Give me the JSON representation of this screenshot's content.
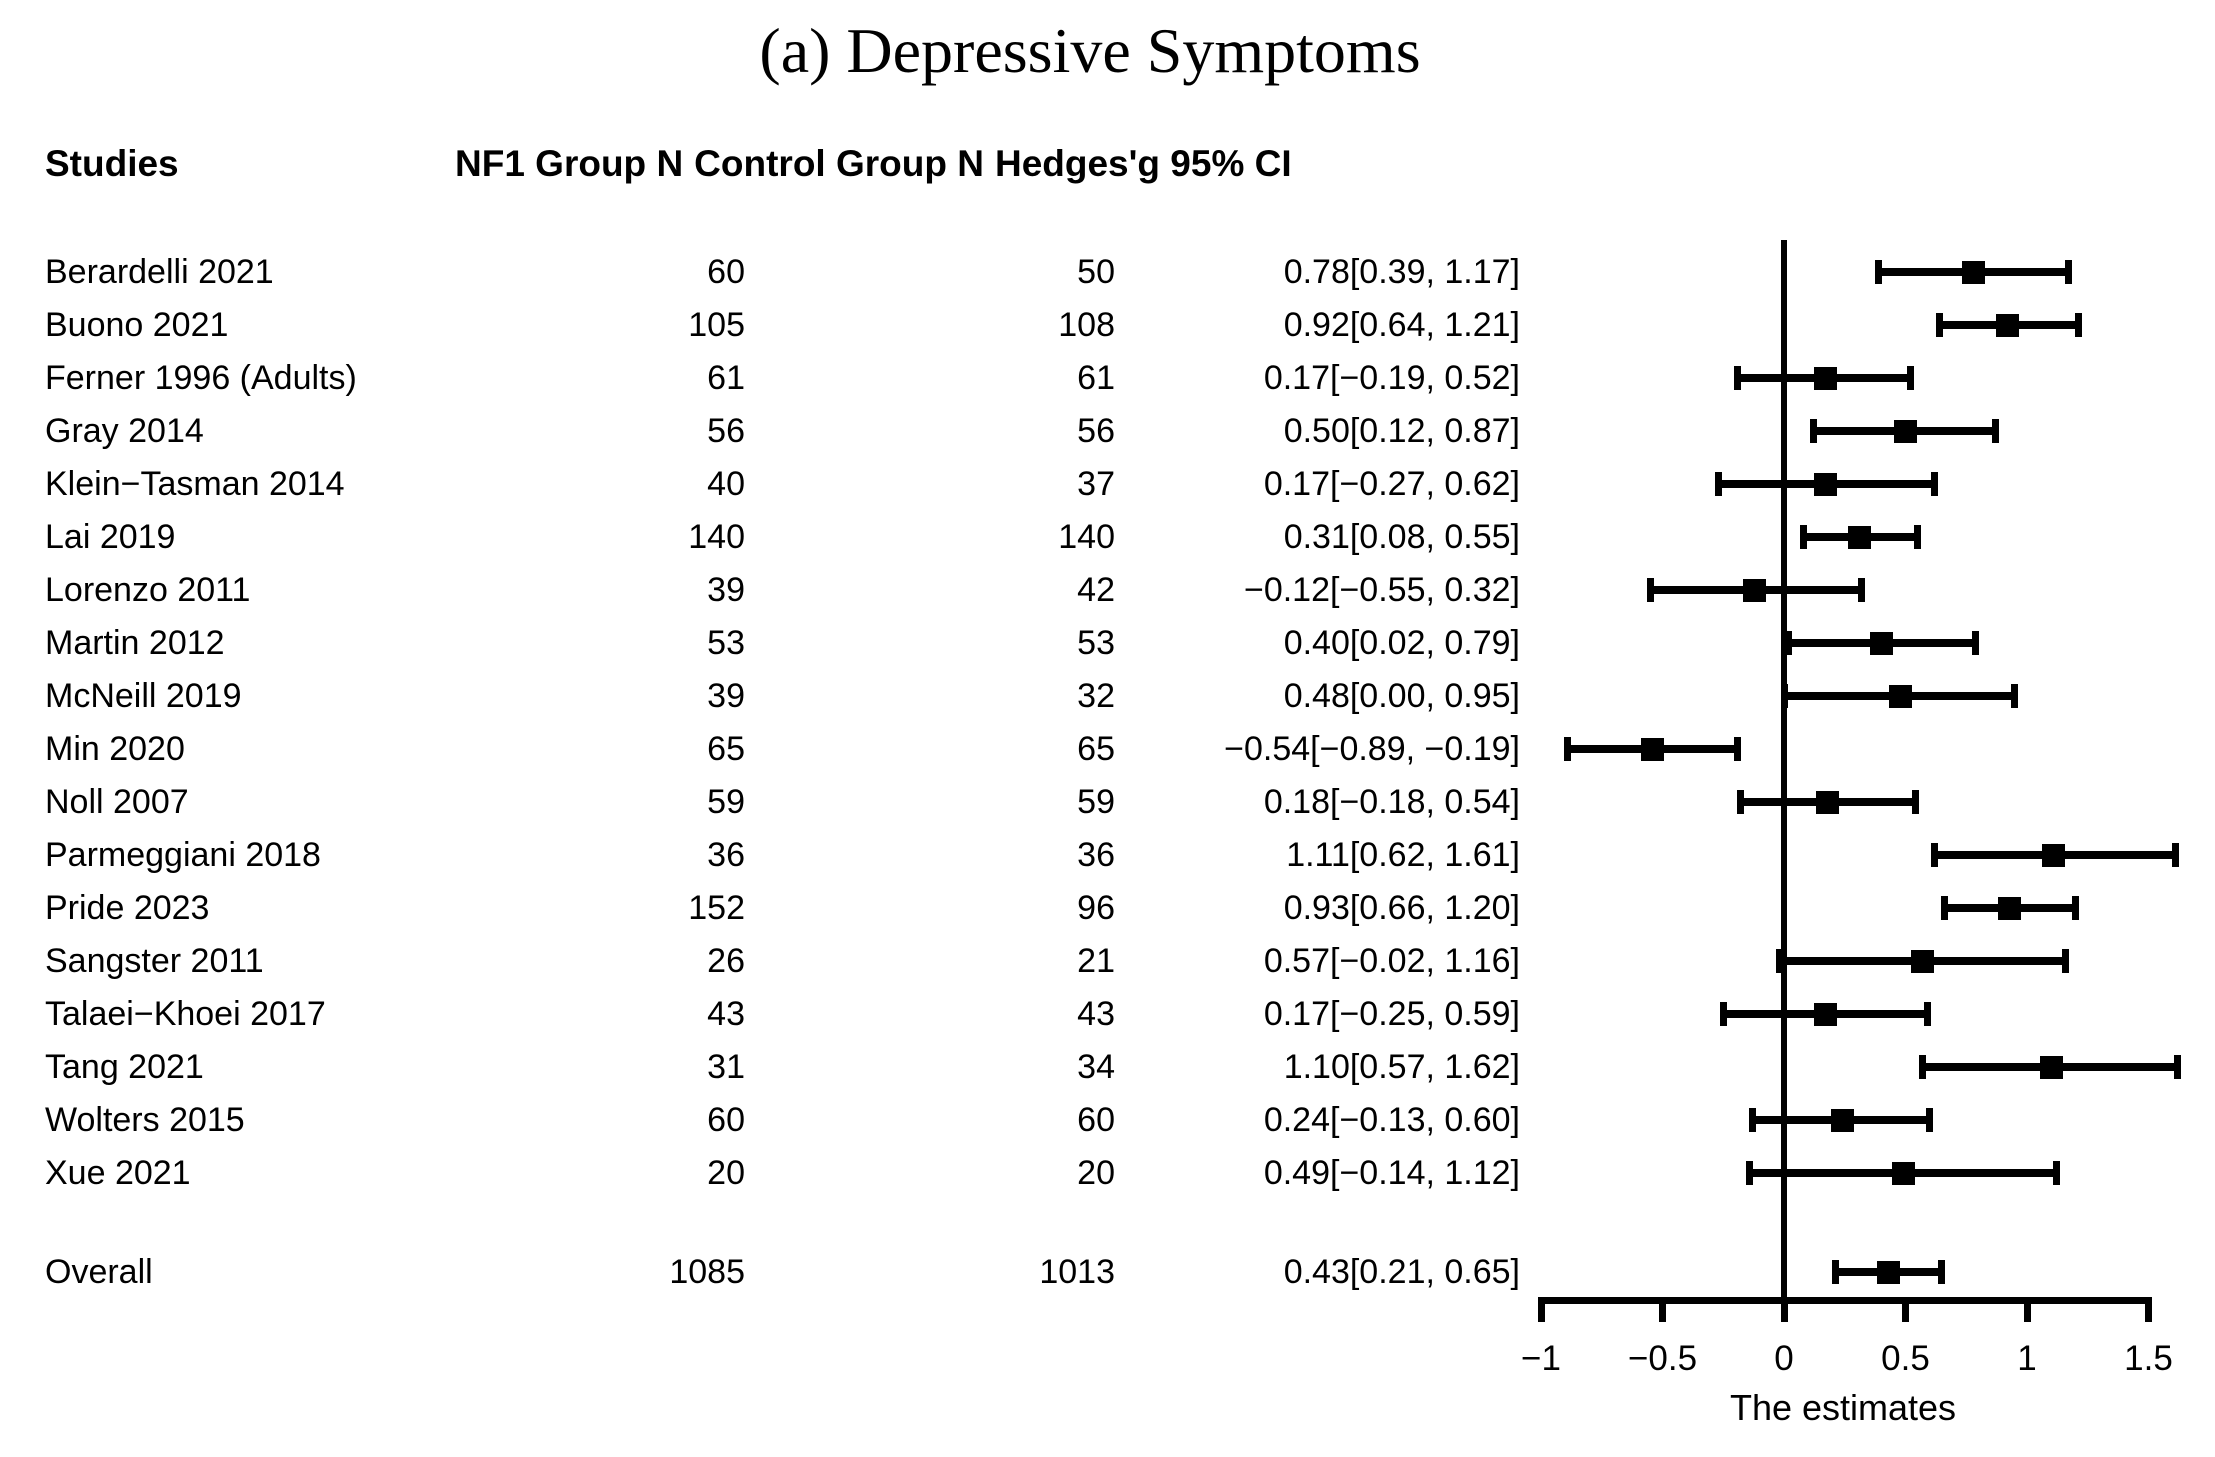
{
  "title": "(a) Depressive Symptoms",
  "columns": {
    "studies": "Studies",
    "nf1": "NF1 Group N",
    "control": "Control Group N",
    "hedges": "Hedges'g 95% CI"
  },
  "chart_data": {
    "type": "forest",
    "title": "(a) Depressive Symptoms",
    "xlabel": "The estimates",
    "xlim": [
      -1,
      1.5
    ],
    "x_ticks": [
      -1,
      -0.5,
      0,
      0.5,
      1,
      1.5
    ],
    "x_tick_labels": [
      "−1",
      "−0.5",
      "0",
      "0.5",
      "1",
      "1.5"
    ],
    "zero_reference_line": 0,
    "grid": false,
    "marker_color": "#000000",
    "studies": [
      {
        "label": "Berardelli 2021",
        "nf1_n": "60",
        "control_n": "50",
        "ci_text": "0.78[0.39, 1.17]",
        "g": 0.78,
        "lo": 0.39,
        "hi": 1.17
      },
      {
        "label": "Buono 2021",
        "nf1_n": "105",
        "control_n": "108",
        "ci_text": "0.92[0.64, 1.21]",
        "g": 0.92,
        "lo": 0.64,
        "hi": 1.21
      },
      {
        "label": "Ferner 1996 (Adults)",
        "nf1_n": "61",
        "control_n": "61",
        "ci_text": "0.17[−0.19, 0.52]",
        "g": 0.17,
        "lo": -0.19,
        "hi": 0.52
      },
      {
        "label": "Gray 2014",
        "nf1_n": "56",
        "control_n": "56",
        "ci_text": "0.50[0.12, 0.87]",
        "g": 0.5,
        "lo": 0.12,
        "hi": 0.87
      },
      {
        "label": "Klein−Tasman 2014",
        "nf1_n": "40",
        "control_n": "37",
        "ci_text": "0.17[−0.27, 0.62]",
        "g": 0.17,
        "lo": -0.27,
        "hi": 0.62
      },
      {
        "label": "Lai 2019",
        "nf1_n": "140",
        "control_n": "140",
        "ci_text": "0.31[0.08, 0.55]",
        "g": 0.31,
        "lo": 0.08,
        "hi": 0.55
      },
      {
        "label": "Lorenzo 2011",
        "nf1_n": "39",
        "control_n": "42",
        "ci_text": "−0.12[−0.55, 0.32]",
        "g": -0.12,
        "lo": -0.55,
        "hi": 0.32
      },
      {
        "label": "Martin 2012",
        "nf1_n": "53",
        "control_n": "53",
        "ci_text": "0.40[0.02, 0.79]",
        "g": 0.4,
        "lo": 0.02,
        "hi": 0.79
      },
      {
        "label": "McNeill 2019",
        "nf1_n": "39",
        "control_n": "32",
        "ci_text": "0.48[0.00, 0.95]",
        "g": 0.48,
        "lo": 0.0,
        "hi": 0.95
      },
      {
        "label": "Min 2020",
        "nf1_n": "65",
        "control_n": "65",
        "ci_text": "−0.54[−0.89, −0.19]",
        "g": -0.54,
        "lo": -0.89,
        "hi": -0.19
      },
      {
        "label": "Noll 2007",
        "nf1_n": "59",
        "control_n": "59",
        "ci_text": "0.18[−0.18, 0.54]",
        "g": 0.18,
        "lo": -0.18,
        "hi": 0.54
      },
      {
        "label": "Parmeggiani 2018",
        "nf1_n": "36",
        "control_n": "36",
        "ci_text": "1.11[0.62, 1.61]",
        "g": 1.11,
        "lo": 0.62,
        "hi": 1.61
      },
      {
        "label": "Pride 2023",
        "nf1_n": "152",
        "control_n": "96",
        "ci_text": "0.93[0.66, 1.20]",
        "g": 0.93,
        "lo": 0.66,
        "hi": 1.2
      },
      {
        "label": "Sangster 2011",
        "nf1_n": "26",
        "control_n": "21",
        "ci_text": "0.57[−0.02, 1.16]",
        "g": 0.57,
        "lo": -0.02,
        "hi": 1.16
      },
      {
        "label": "Talaei−Khoei 2017",
        "nf1_n": "43",
        "control_n": "43",
        "ci_text": "0.17[−0.25, 0.59]",
        "g": 0.17,
        "lo": -0.25,
        "hi": 0.59
      },
      {
        "label": "Tang 2021",
        "nf1_n": "31",
        "control_n": "34",
        "ci_text": "1.10[0.57, 1.62]",
        "g": 1.1,
        "lo": 0.57,
        "hi": 1.62
      },
      {
        "label": "Wolters 2015",
        "nf1_n": "60",
        "control_n": "60",
        "ci_text": "0.24[−0.13, 0.60]",
        "g": 0.24,
        "lo": -0.13,
        "hi": 0.6
      },
      {
        "label": "Xue 2021",
        "nf1_n": "20",
        "control_n": "20",
        "ci_text": "0.49[−0.14, 1.12]",
        "g": 0.49,
        "lo": -0.14,
        "hi": 1.12
      }
    ],
    "overall": {
      "label": "Overall",
      "nf1_n": "1085",
      "control_n": "1013",
      "ci_text": "0.43[0.21, 0.65]",
      "g": 0.43,
      "lo": 0.21,
      "hi": 0.65
    }
  }
}
